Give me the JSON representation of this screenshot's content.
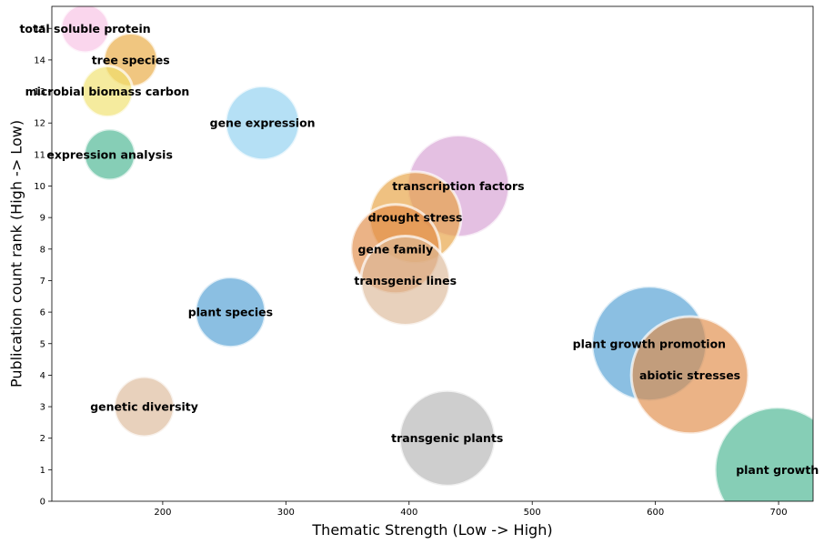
{
  "chart_data": {
    "type": "scatter",
    "xlabel": "Thematic Strength (Low -> High)",
    "ylabel": "Publication count rank (High -> Low)",
    "xlim": [
      110,
      728
    ],
    "ylim": [
      0,
      15.7
    ],
    "xticks": [
      200,
      300,
      400,
      500,
      600,
      700
    ],
    "yticks": [
      0,
      1,
      2,
      3,
      4,
      5,
      6,
      7,
      8,
      9,
      10,
      11,
      12,
      13,
      14,
      15
    ],
    "grid": false,
    "legend": "none",
    "points": [
      {
        "label": "total soluble protein",
        "x": 137,
        "y": 15,
        "size": 0.38,
        "color": "#f7c0e3"
      },
      {
        "label": "tree species",
        "x": 174,
        "y": 14,
        "size": 0.42,
        "color": "#e8a83c"
      },
      {
        "label": "microbial biomass carbon",
        "x": 155,
        "y": 13,
        "size": 0.4,
        "color": "#efe06a"
      },
      {
        "label": "gene expression",
        "x": 281,
        "y": 12,
        "size": 0.58,
        "color": "#8ecfef"
      },
      {
        "label": "expression analysis",
        "x": 157,
        "y": 11,
        "size": 0.4,
        "color": "#45b38f"
      },
      {
        "label": "transcription factors",
        "x": 440,
        "y": 10,
        "size": 0.8,
        "color": "#d59ed2"
      },
      {
        "label": "drought stress",
        "x": 405,
        "y": 9,
        "size": 0.72,
        "color": "#e6a03e"
      },
      {
        "label": "gene family",
        "x": 389,
        "y": 8,
        "size": 0.7,
        "color": "#e18a45"
      },
      {
        "label": "transgenic lines",
        "x": 397,
        "y": 7,
        "size": 0.7,
        "color": "#dcb898"
      },
      {
        "label": "plant species",
        "x": 255,
        "y": 6,
        "size": 0.55,
        "color": "#4d9dd2"
      },
      {
        "label": "plant growth promotion",
        "x": 595,
        "y": 5,
        "size": 0.9,
        "color": "#4d9dd2"
      },
      {
        "label": "abiotic stresses",
        "x": 628,
        "y": 4,
        "size": 0.92,
        "color": "#e18a45"
      },
      {
        "label": "genetic diversity",
        "x": 185,
        "y": 3,
        "size": 0.47,
        "color": "#dcb898"
      },
      {
        "label": "transgenic plants",
        "x": 431,
        "y": 2,
        "size": 0.75,
        "color": "#b3b3b3"
      },
      {
        "label": "plant growth",
        "x": 699,
        "y": 1,
        "size": 0.98,
        "color": "#45b38f"
      }
    ]
  }
}
